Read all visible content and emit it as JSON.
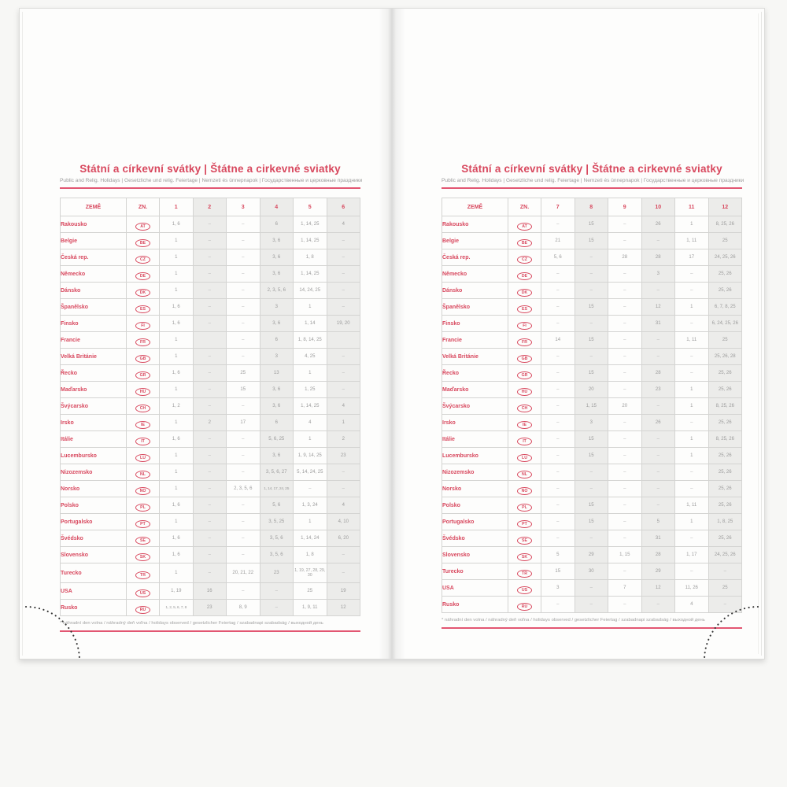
{
  "book": {
    "title": "Státní a církevní svátky | Štátne a cirkevné sviatky",
    "subtitle": "Public and Relig. Holidays | Gesetzliche und relig. Feiertage | Nemzeti és ünnepnapok | Государственные и церковные праздники",
    "footnote": "* náhradní den volna / náhradný deň voľna / holidays observed / gesetzlicher Feiertag / szabadnapi szabadság / выходной день",
    "accent_color": "#d8485e",
    "data_color": "#9b9b9b"
  },
  "table": {
    "col_country": "ZEMĚ",
    "col_code": "ZN.",
    "pages": [
      {
        "months": [
          "1",
          "2",
          "3",
          "4",
          "5",
          "6"
        ],
        "rows": [
          {
            "country": "Rakousko",
            "code": "AT",
            "values": [
              "1, 6",
              "–",
              "–",
              "6",
              "1, 14, 25",
              "4"
            ]
          },
          {
            "country": "Belgie",
            "code": "BE",
            "values": [
              "1",
              "–",
              "–",
              "3, 6",
              "1, 14, 25",
              "–"
            ]
          },
          {
            "country": "Česká rep.",
            "code": "CZ",
            "values": [
              "1",
              "–",
              "–",
              "3, 6",
              "1, 8",
              "–"
            ]
          },
          {
            "country": "Německo",
            "code": "DE",
            "values": [
              "1",
              "–",
              "–",
              "3, 6",
              "1, 14, 25",
              "–"
            ]
          },
          {
            "country": "Dánsko",
            "code": "DK",
            "values": [
              "1",
              "–",
              "–",
              "2, 3, 5, 6",
              "14, 24, 25",
              "–"
            ]
          },
          {
            "country": "Španělsko",
            "code": "ES",
            "values": [
              "1, 6",
              "–",
              "–",
              "3",
              "1",
              "–"
            ]
          },
          {
            "country": "Finsko",
            "code": "FI",
            "values": [
              "1, 6",
              "–",
              "–",
              "3, 6",
              "1, 14",
              "19, 20"
            ]
          },
          {
            "country": "Francie",
            "code": "FR",
            "values": [
              "1",
              "",
              "–",
              "6",
              "1, 8, 14, 25",
              ""
            ]
          },
          {
            "country": "Velká Británie",
            "code": "GB",
            "values": [
              "1",
              "–",
              "–",
              "3",
              "4, 25",
              "–"
            ]
          },
          {
            "country": "Řecko",
            "code": "GR",
            "values": [
              "1, 6",
              "–",
              "25",
              "13",
              "1",
              "–"
            ]
          },
          {
            "country": "Maďarsko",
            "code": "HU",
            "values": [
              "1",
              "–",
              "15",
              "3, 6",
              "1, 25",
              "–"
            ]
          },
          {
            "country": "Švýcarsko",
            "code": "CH",
            "values": [
              "1, 2",
              "–",
              "–",
              "3, 6",
              "1, 14, 25",
              "4"
            ]
          },
          {
            "country": "Irsko",
            "code": "IE",
            "values": [
              "1",
              "2",
              "17",
              "6",
              "4",
              "1"
            ]
          },
          {
            "country": "Itálie",
            "code": "IT",
            "values": [
              "1, 6",
              "–",
              "–",
              "5, 6, 25",
              "1",
              "2"
            ]
          },
          {
            "country": "Lucembursko",
            "code": "LU",
            "values": [
              "1",
              "–",
              "–",
              "3, 6",
              "1, 9, 14, 25",
              "23"
            ]
          },
          {
            "country": "Nizozemsko",
            "code": "NL",
            "values": [
              "1",
              "–",
              "–",
              "3, 5, 6, 27",
              "5, 14, 24, 25",
              "–"
            ]
          },
          {
            "country": "Norsko",
            "code": "NO",
            "values": [
              "1",
              "–",
              "2, 3, 5, 6",
              "1, 14, 17, 24, 25",
              "–",
              "–"
            ]
          },
          {
            "country": "Polsko",
            "code": "PL",
            "values": [
              "1, 6",
              "–",
              "–",
              "5, 6",
              "1, 3, 24",
              "4"
            ]
          },
          {
            "country": "Portugalsko",
            "code": "PT",
            "values": [
              "1",
              "–",
              "–",
              "3, 5, 25",
              "1",
              "4, 10"
            ]
          },
          {
            "country": "Švédsko",
            "code": "SE",
            "values": [
              "1, 6",
              "–",
              "–",
              "3, 5, 6",
              "1, 14, 24",
              "6, 20"
            ]
          },
          {
            "country": "Slovensko",
            "code": "SK",
            "values": [
              "1, 6",
              "–",
              "–",
              "3, 5, 6",
              "1, 8",
              "–"
            ]
          },
          {
            "country": "Turecko",
            "code": "TR",
            "values": [
              "1",
              "–",
              "20, 21, 22",
              "23",
              "1, 19, 27, 28, 29, 30",
              "–"
            ]
          },
          {
            "country": "USA",
            "code": "US",
            "values": [
              "1, 19",
              "16",
              "–",
              "–",
              "25",
              "19"
            ]
          },
          {
            "country": "Rusko",
            "code": "RU",
            "values": [
              "1, 2, 5, 6, 7, 8",
              "23",
              "8, 9",
              "–",
              "1, 9, 11",
              "12"
            ]
          }
        ]
      },
      {
        "months": [
          "7",
          "8",
          "9",
          "10",
          "11",
          "12"
        ],
        "rows": [
          {
            "country": "Rakousko",
            "code": "AT",
            "values": [
              "–",
              "15",
              "–",
              "26",
              "1",
              "8, 25, 26"
            ]
          },
          {
            "country": "Belgie",
            "code": "BE",
            "values": [
              "21",
              "15",
              "–",
              "–",
              "1, 11",
              "25"
            ]
          },
          {
            "country": "Česká rep.",
            "code": "CZ",
            "values": [
              "5, 6",
              "–",
              "28",
              "28",
              "17",
              "24, 25, 26"
            ]
          },
          {
            "country": "Německo",
            "code": "DE",
            "values": [
              "–",
              "–",
              "–",
              "3",
              "–",
              "25, 26"
            ]
          },
          {
            "country": "Dánsko",
            "code": "DK",
            "values": [
              "–",
              "–",
              "–",
              "–",
              "–",
              "25, 26"
            ]
          },
          {
            "country": "Španělsko",
            "code": "ES",
            "values": [
              "–",
              "15",
              "–",
              "12",
              "1",
              "6, 7, 8, 25"
            ]
          },
          {
            "country": "Finsko",
            "code": "FI",
            "values": [
              "–",
              "–",
              "–",
              "31",
              "–",
              "6, 24, 25, 26"
            ]
          },
          {
            "country": "Francie",
            "code": "FR",
            "values": [
              "14",
              "15",
              "–",
              "–",
              "1, 11",
              "25"
            ]
          },
          {
            "country": "Velká Británie",
            "code": "GB",
            "values": [
              "–",
              "–",
              "–",
              "–",
              "–",
              "25, 26, 28"
            ]
          },
          {
            "country": "Řecko",
            "code": "GR",
            "values": [
              "–",
              "15",
              "–",
              "28",
              "–",
              "25, 26"
            ]
          },
          {
            "country": "Maďarsko",
            "code": "HU",
            "values": [
              "–",
              "20",
              "–",
              "23",
              "1",
              "25, 26"
            ]
          },
          {
            "country": "Švýcarsko",
            "code": "CH",
            "values": [
              "–",
              "1, 15",
              "20",
              "–",
              "1",
              "8, 25, 26"
            ]
          },
          {
            "country": "Irsko",
            "code": "IE",
            "values": [
              "–",
              "3",
              "–",
              "26",
              "–",
              "25, 26"
            ]
          },
          {
            "country": "Itálie",
            "code": "IT",
            "values": [
              "–",
              "15",
              "–",
              "–",
              "1",
              "8, 25, 26"
            ]
          },
          {
            "country": "Lucembursko",
            "code": "LU",
            "values": [
              "–",
              "15",
              "–",
              "–",
              "1",
              "25, 26"
            ]
          },
          {
            "country": "Nizozemsko",
            "code": "NL",
            "values": [
              "–",
              "–",
              "–",
              "–",
              "–",
              "25, 26"
            ]
          },
          {
            "country": "Norsko",
            "code": "NO",
            "values": [
              "–",
              "–",
              "–",
              "–",
              "–",
              "25, 26"
            ]
          },
          {
            "country": "Polsko",
            "code": "PL",
            "values": [
              "–",
              "15",
              "–",
              "–",
              "1, 11",
              "25, 26"
            ]
          },
          {
            "country": "Portugalsko",
            "code": "PT",
            "values": [
              "–",
              "15",
              "–",
              "5",
              "1",
              "1, 8, 25"
            ]
          },
          {
            "country": "Švédsko",
            "code": "SE",
            "values": [
              "–",
              "–",
              "–",
              "31",
              "–",
              "25, 26"
            ]
          },
          {
            "country": "Slovensko",
            "code": "SK",
            "values": [
              "5",
              "29",
              "1, 15",
              "28",
              "1, 17",
              "24, 25, 26"
            ]
          },
          {
            "country": "Turecko",
            "code": "TR",
            "values": [
              "15",
              "30",
              "–",
              "29",
              "–",
              "–"
            ]
          },
          {
            "country": "USA",
            "code": "US",
            "values": [
              "3",
              "–",
              "7",
              "12",
              "11, 26",
              "25"
            ]
          },
          {
            "country": "Rusko",
            "code": "RU",
            "values": [
              "–",
              "–",
              "–",
              "–",
              "4",
              "–"
            ]
          }
        ]
      }
    ]
  }
}
